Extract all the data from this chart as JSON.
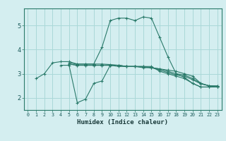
{
  "xlabel": "Humidex (Indice chaleur)",
  "bg_color": "#d4eef0",
  "line_color": "#2a7a6a",
  "grid_color": "#aad8d8",
  "lines": [
    {
      "x": [
        1,
        2,
        3,
        4,
        5,
        6,
        7,
        8,
        9,
        10,
        11,
        12,
        13,
        14,
        15,
        16,
        17,
        18,
        19,
        20,
        21,
        22,
        23
      ],
      "y": [
        2.8,
        3.0,
        3.45,
        3.5,
        3.5,
        3.4,
        3.4,
        3.4,
        4.1,
        5.2,
        5.3,
        5.3,
        5.2,
        5.35,
        5.3,
        4.5,
        3.7,
        3.0,
        2.85,
        2.6,
        2.45,
        2.45,
        2.45
      ]
    },
    {
      "x": [
        4,
        5,
        6,
        7,
        8,
        9,
        10,
        11,
        12,
        13,
        14,
        15,
        16,
        17,
        18,
        19,
        20,
        21,
        22,
        23
      ],
      "y": [
        3.35,
        3.35,
        1.8,
        1.95,
        2.6,
        2.7,
        3.35,
        3.35,
        3.3,
        3.3,
        3.3,
        3.3,
        3.1,
        3.0,
        2.9,
        2.8,
        2.6,
        2.45,
        2.45,
        2.45
      ]
    },
    {
      "x": [
        5,
        6,
        7,
        8,
        9,
        10,
        11,
        12,
        13,
        14,
        15,
        16,
        17,
        18,
        19,
        20,
        21,
        22,
        23
      ],
      "y": [
        3.4,
        3.35,
        3.35,
        3.35,
        3.35,
        3.35,
        3.3,
        3.3,
        3.3,
        3.25,
        3.25,
        3.2,
        3.15,
        3.1,
        3.0,
        2.9,
        2.6,
        2.5,
        2.45
      ]
    },
    {
      "x": [
        5,
        6,
        7,
        8,
        9,
        10,
        11,
        12,
        13,
        14,
        15,
        16,
        17,
        18,
        19,
        20,
        21,
        22,
        23
      ],
      "y": [
        3.4,
        3.35,
        3.35,
        3.35,
        3.35,
        3.35,
        3.35,
        3.3,
        3.3,
        3.3,
        3.25,
        3.2,
        3.1,
        3.0,
        2.95,
        2.8,
        2.6,
        2.5,
        2.5
      ]
    },
    {
      "x": [
        5,
        6,
        7,
        8,
        9,
        10,
        11,
        12,
        13,
        14,
        15,
        16,
        17,
        18,
        19,
        20,
        21,
        22,
        23
      ],
      "y": [
        3.45,
        3.4,
        3.4,
        3.4,
        3.4,
        3.38,
        3.35,
        3.3,
        3.3,
        3.28,
        3.25,
        3.15,
        3.05,
        2.95,
        2.9,
        2.75,
        2.58,
        2.5,
        2.48
      ]
    }
  ],
  "xlim": [
    -0.5,
    23.5
  ],
  "ylim": [
    1.5,
    5.7
  ],
  "xticks": [
    0,
    1,
    2,
    3,
    4,
    5,
    6,
    7,
    8,
    9,
    10,
    11,
    12,
    13,
    14,
    15,
    16,
    17,
    18,
    19,
    20,
    21,
    22,
    23
  ],
  "yticks": [
    2,
    3,
    4,
    5
  ],
  "marker": "+"
}
